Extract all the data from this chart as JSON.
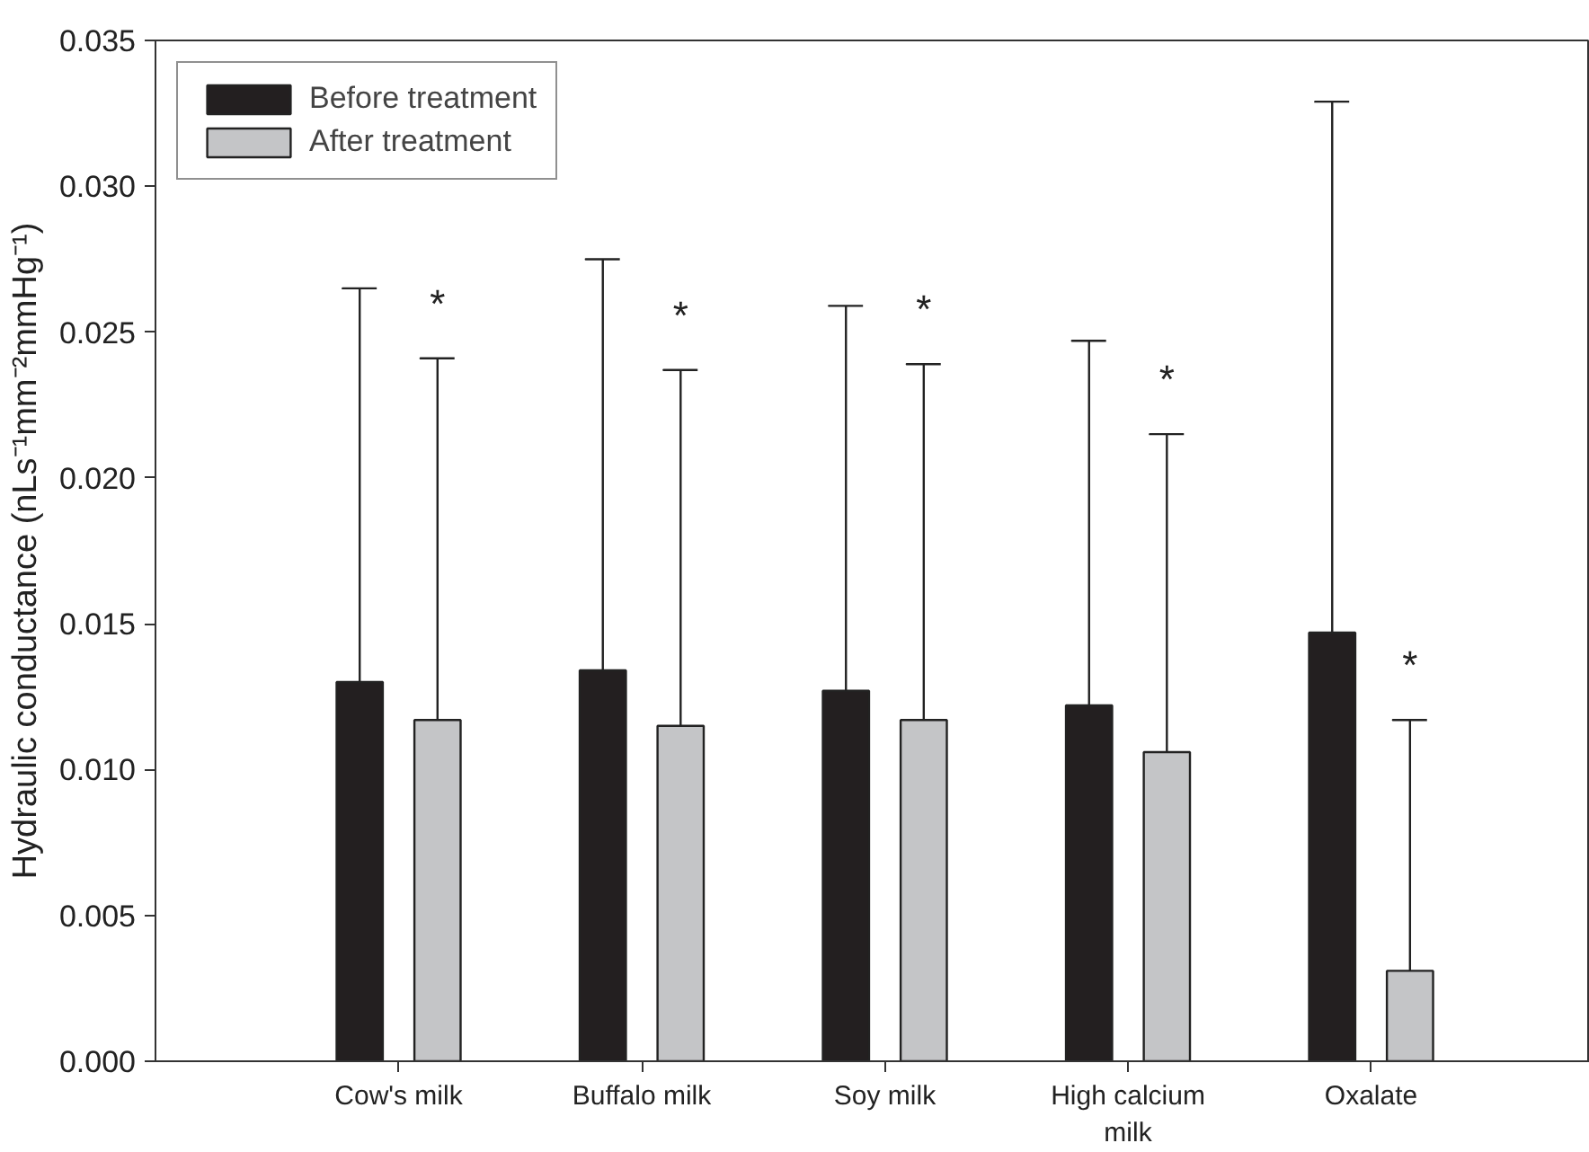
{
  "chart_data": {
    "type": "bar",
    "ylabel": "Hydraulic conductance (nLs⁻¹mm⁻²mmHg⁻¹)",
    "categories": [
      "Cow's milk",
      "Buffalo milk",
      "Soy milk",
      "High calcium milk",
      "Oxalate"
    ],
    "series": [
      {
        "name": "Before treatment",
        "color": "#231f20",
        "values": [
          0.013,
          0.0134,
          0.0127,
          0.0122,
          0.0147
        ],
        "errors": [
          [
            0.013,
            0.0265
          ],
          [
            0.0134,
            0.0275
          ],
          [
            0.0127,
            0.0259
          ],
          [
            0.0122,
            0.0247
          ],
          [
            0.0147,
            0.0329
          ]
        ]
      },
      {
        "name": "After treatment",
        "color": "#c4c5c7",
        "values": [
          0.0117,
          0.0115,
          0.0117,
          0.0106,
          0.0031
        ],
        "errors": [
          [
            0.0117,
            0.0241
          ],
          [
            0.0115,
            0.0237
          ],
          [
            0.0117,
            0.0239
          ],
          [
            0.0106,
            0.0215
          ],
          [
            0.0031,
            0.0117
          ]
        ]
      }
    ],
    "ylim": [
      0,
      0.035
    ],
    "yticks": [
      {
        "value": 0,
        "label": "0.000"
      },
      {
        "value": 0.005,
        "label": "0.005"
      },
      {
        "value": 0.01,
        "label": "0.010"
      },
      {
        "value": 0.015,
        "label": "0.015"
      },
      {
        "value": 0.02,
        "label": "0.020"
      },
      {
        "value": 0.025,
        "label": "0.025"
      },
      {
        "value": 0.03,
        "label": "0.030"
      },
      {
        "value": 0.035,
        "label": "0.035"
      }
    ],
    "annotations": [
      "*",
      "*",
      "*",
      "*",
      "*"
    ],
    "legend": "top left",
    "grid": false
  }
}
